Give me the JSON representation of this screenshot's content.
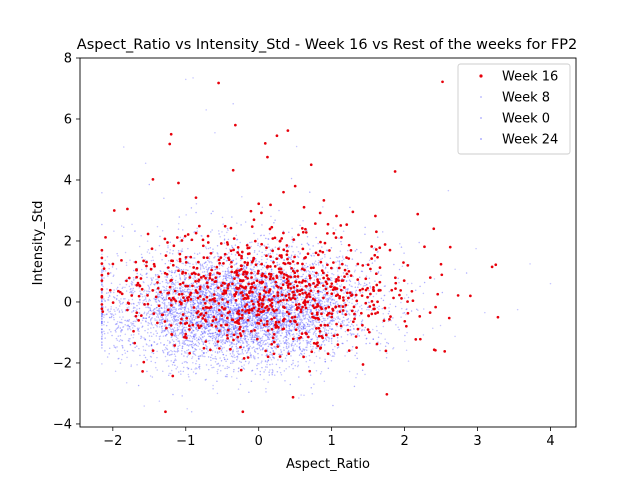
{
  "chart_data": {
    "type": "scatter",
    "title": "Aspect_Ratio vs Intensity_Std - Week 16 vs Rest of the weeks for FP2",
    "xlabel": "Aspect_Ratio",
    "ylabel": "Intensity_Std",
    "xlim": [
      -2.45,
      4.35
    ],
    "ylim": [
      -4.1,
      8.0
    ],
    "xticks": [
      -2,
      -1,
      0,
      1,
      2,
      3,
      4
    ],
    "yticks": [
      -4,
      -2,
      0,
      2,
      4,
      6,
      8
    ],
    "grid": false,
    "legend_position": "top-right",
    "series": [
      {
        "name": "Week 16",
        "color": "#e8000b",
        "marker": "point",
        "approx_count": 900,
        "distribution": {
          "x_mean": 0.15,
          "x_sd": 0.95,
          "y_mean": 0.25,
          "y_sd": 0.85
        },
        "highlighted_points": [
          [
            2.52,
            7.22
          ],
          [
            -0.55,
            7.18
          ],
          [
            -1.2,
            5.5
          ],
          [
            -0.32,
            5.8
          ],
          [
            0.4,
            5.62
          ],
          [
            0.25,
            5.45
          ],
          [
            -1.22,
            5.18
          ],
          [
            0.09,
            5.2
          ],
          [
            0.12,
            4.75
          ],
          [
            0.72,
            4.5
          ],
          [
            -0.35,
            4.32
          ],
          [
            -1.45,
            4.02
          ],
          [
            -1.1,
            3.9
          ],
          [
            1.87,
            4.28
          ],
          [
            0.5,
            3.8
          ],
          [
            0.0,
            3.22
          ],
          [
            -0.86,
            3.42
          ],
          [
            0.34,
            3.6
          ],
          [
            3.2,
            1.15
          ],
          [
            3.25,
            1.22
          ],
          [
            3.28,
            -0.5
          ],
          [
            2.18,
            2.88
          ],
          [
            2.4,
            2.4
          ],
          [
            -1.98,
            3.0
          ],
          [
            -1.8,
            3.05
          ],
          [
            -2.1,
            2.12
          ],
          [
            2.35,
            -0.35
          ],
          [
            2.55,
            -1.62
          ],
          [
            1.43,
            -2.05
          ],
          [
            -0.2,
            -1.85
          ],
          [
            -1.7,
            -1.35
          ],
          [
            1.03,
            2.25
          ],
          [
            1.6,
            2.82
          ],
          [
            0.95,
            2.55
          ],
          [
            2.1,
            0.35
          ],
          [
            -1.25,
            1.95
          ],
          [
            0.85,
            -1.5
          ],
          [
            1.8,
            1.7
          ]
        ]
      },
      {
        "name": "Week 8",
        "color": "#8080ff",
        "marker": "point",
        "approx_count": 2200,
        "distribution": {
          "x_mean": -0.25,
          "x_sd": 0.95,
          "y_mean": -0.25,
          "y_sd": 0.8
        },
        "highlighted_points": [
          [
            -1.0,
            7.3
          ],
          [
            -0.9,
            7.35
          ],
          [
            -0.72,
            6.3
          ],
          [
            -0.6,
            5.55
          ],
          [
            -1.55,
            4.55
          ],
          [
            -1.85,
            5.08
          ],
          [
            0.52,
            5.1
          ],
          [
            2.6,
            3.65
          ],
          [
            3.55,
            -0.25
          ],
          [
            3.72,
            1.25
          ],
          [
            4.0,
            0.6
          ],
          [
            -0.98,
            -3.5
          ],
          [
            0.55,
            -3.15
          ],
          [
            -0.3,
            -2.5
          ],
          [
            0.9,
            -2.6
          ],
          [
            2.98,
            1.75
          ],
          [
            3.1,
            -0.35
          ]
        ]
      },
      {
        "name": "Week 0",
        "color": "#6a6aff",
        "marker": "point",
        "approx_count": 2200,
        "distribution": {
          "x_mean": -0.4,
          "x_sd": 0.75,
          "y_mean": -0.35,
          "y_sd": 0.75
        },
        "highlighted_points": [
          [
            -0.35,
            6.5
          ],
          [
            0.45,
            4.05
          ],
          [
            -1.85,
            2.45
          ],
          [
            1.25,
            3.1
          ],
          [
            -2.05,
            -1.7
          ],
          [
            -1.3,
            3.4
          ],
          [
            0.1,
            -2.95
          ],
          [
            1.7,
            2.3
          ]
        ]
      },
      {
        "name": "Week 24",
        "color": "#5050ff",
        "marker": "point",
        "approx_count": 2000,
        "distribution": {
          "x_mean": -0.1,
          "x_sd": 0.85,
          "y_mean": -0.3,
          "y_sd": 0.75
        },
        "highlighted_points": [
          [
            -1.5,
            3.85
          ],
          [
            0.7,
            3.6
          ],
          [
            -0.1,
            -2.6
          ],
          [
            2.2,
            1.95
          ],
          [
            -0.65,
            2.9
          ],
          [
            1.35,
            -1.85
          ],
          [
            2.85,
            0.95
          ]
        ]
      }
    ]
  }
}
